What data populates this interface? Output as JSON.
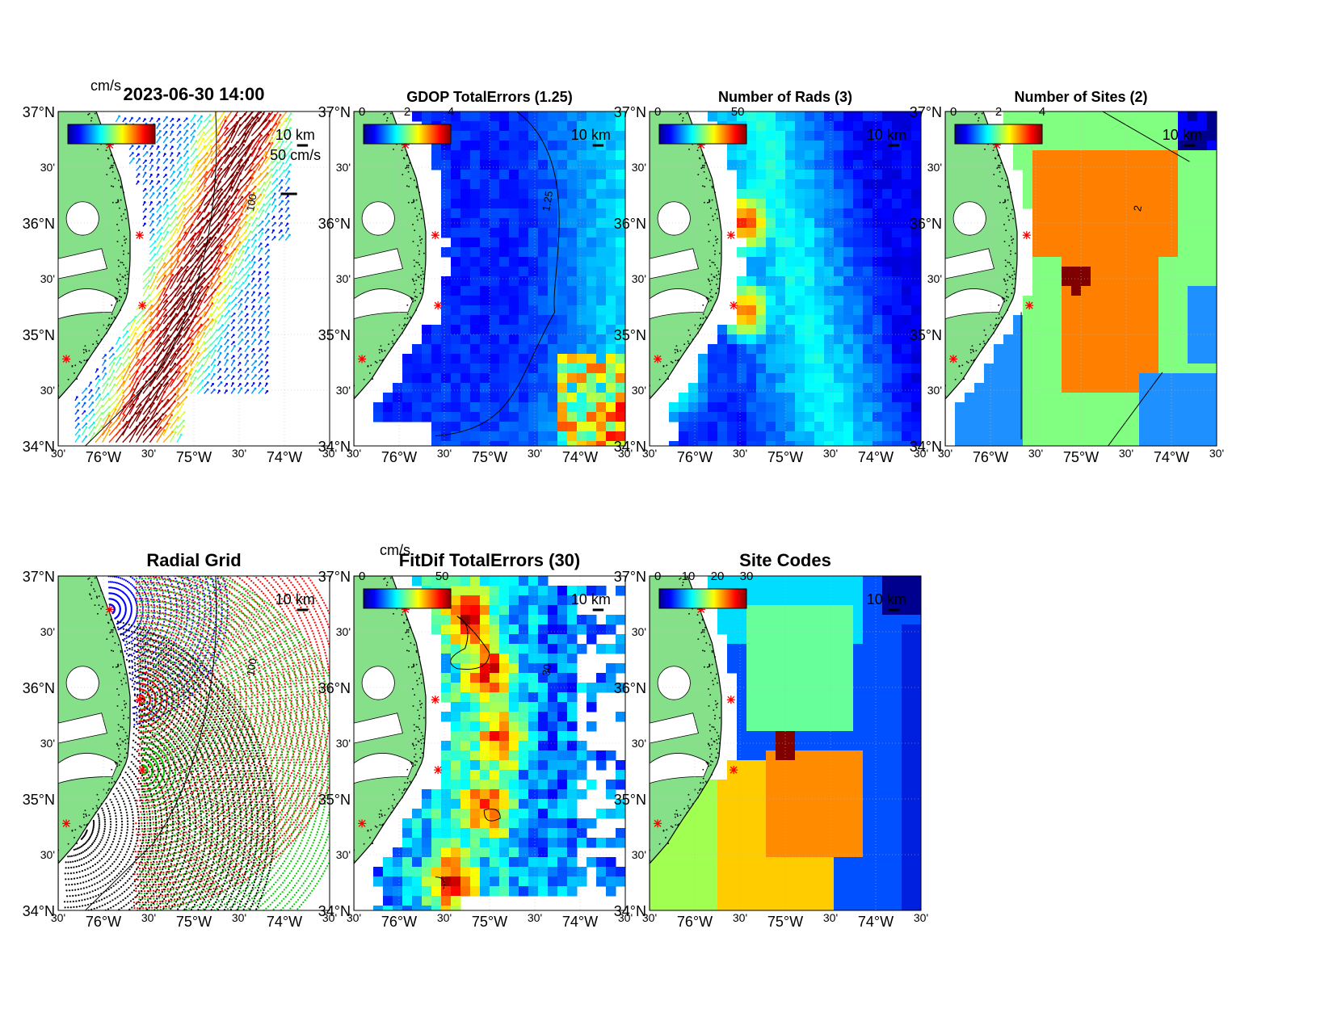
{
  "panels": [
    {
      "id": "currents",
      "title": "2023-06-30 14:00",
      "type": "vectors",
      "colorbar": {
        "unit": "cm/s",
        "ticks": []
      },
      "scale_label": "50 cm/s",
      "km_label": "10 km",
      "contour_label": "100"
    },
    {
      "id": "gdop",
      "title": "GDOP TotalErrors (1.25)",
      "type": "heat",
      "colorbar": {
        "unit": "",
        "ticks": [
          "0",
          "2",
          "4"
        ]
      },
      "km_label": "10 km",
      "contour_label": "1.25"
    },
    {
      "id": "rads",
      "title": "Number of Rads (3)",
      "type": "heat",
      "colorbar": {
        "unit": "",
        "ticks": [
          "0",
          "50"
        ]
      },
      "km_label": "10 km",
      "contour_label": ""
    },
    {
      "id": "sites",
      "title": "Number of Sites (2)",
      "type": "zones",
      "colorbar": {
        "unit": "",
        "ticks": [
          "0",
          "2",
          "4"
        ]
      },
      "km_label": "10 km",
      "contour_label": "2"
    },
    {
      "id": "grid",
      "title": "Radial Grid",
      "type": "grid",
      "colorbar": null,
      "km_label": "10 km",
      "contour_label": "100"
    },
    {
      "id": "fitdif",
      "title": "FitDif TotalErrors (30)",
      "type": "heat",
      "colorbar": {
        "unit": "cm/s",
        "ticks": [
          "0",
          "50"
        ]
      },
      "km_label": "10 km",
      "contour_label": "30"
    },
    {
      "id": "codes",
      "title": "Site Codes",
      "type": "codes",
      "colorbar": {
        "unit": "",
        "ticks": [
          "0",
          "10",
          "20",
          "30"
        ]
      },
      "km_label": "10 km",
      "contour_label": ""
    }
  ],
  "axes": {
    "lat_labels": [
      "37°N",
      "30'",
      "36°N",
      "30'",
      "35°N",
      "30'",
      "34°N"
    ],
    "lon_labels": [
      "30'",
      "76°W",
      "30'",
      "75°W",
      "30'",
      "74°W",
      "30'"
    ]
  },
  "colors": {
    "land": "#86e08a",
    "water": "#ffffff",
    "site_marker": "#ff0000",
    "jet": [
      "#00008f",
      "#0000ff",
      "#0080ff",
      "#00ffff",
      "#80ff80",
      "#ffff00",
      "#ff8000",
      "#ff0000",
      "#800000"
    ]
  }
}
